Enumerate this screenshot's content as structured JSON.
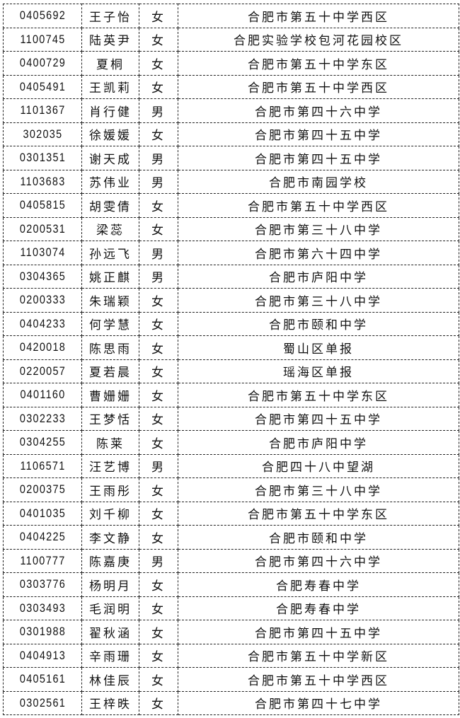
{
  "rows": [
    {
      "id": "0405692",
      "name": "王子怡",
      "gender": "女",
      "school": "合肥市第五十中学西区"
    },
    {
      "id": "1100745",
      "name": "陆英尹",
      "gender": "女",
      "school": "合肥实验学校包河花园校区"
    },
    {
      "id": "0400729",
      "name": "夏桐",
      "gender": "女",
      "school": "合肥市第五十中学东区"
    },
    {
      "id": "0405491",
      "name": "王凯莉",
      "gender": "女",
      "school": "合肥市第五十中学西区"
    },
    {
      "id": "1101367",
      "name": "肖行健",
      "gender": "男",
      "school": "合肥市第四十六中学"
    },
    {
      "id": "302035",
      "name": "徐媛媛",
      "gender": "女",
      "school": "合肥市第四十五中学"
    },
    {
      "id": "0301351",
      "name": "谢天成",
      "gender": "男",
      "school": "合肥市第四十五中学"
    },
    {
      "id": "1103683",
      "name": "苏伟业",
      "gender": "男",
      "school": "合肥市南园学校"
    },
    {
      "id": "0405815",
      "name": "胡雯倩",
      "gender": "女",
      "school": "合肥市第五十中学西区"
    },
    {
      "id": "0200531",
      "name": "梁蕊",
      "gender": "女",
      "school": "合肥市第三十八中学"
    },
    {
      "id": "1103074",
      "name": "孙远飞",
      "gender": "男",
      "school": "合肥市第六十四中学"
    },
    {
      "id": "0304365",
      "name": "姚正麒",
      "gender": "男",
      "school": "合肥市庐阳中学"
    },
    {
      "id": "0200333",
      "name": "朱瑞颖",
      "gender": "女",
      "school": "合肥市第三十八中学"
    },
    {
      "id": "0404233",
      "name": "何学慧",
      "gender": "女",
      "school": "合肥市颐和中学"
    },
    {
      "id": "0420018",
      "name": "陈思雨",
      "gender": "女",
      "school": "蜀山区单报"
    },
    {
      "id": "0220057",
      "name": "夏若晨",
      "gender": "女",
      "school": "瑶海区单报"
    },
    {
      "id": "0401160",
      "name": "曹姗姗",
      "gender": "女",
      "school": "合肥市第五十中学东区"
    },
    {
      "id": "0302233",
      "name": "王梦恬",
      "gender": "女",
      "school": "合肥市第四十五中学"
    },
    {
      "id": "0304255",
      "name": "陈莱",
      "gender": "女",
      "school": "合肥市庐阳中学"
    },
    {
      "id": "1106571",
      "name": "汪艺博",
      "gender": "男",
      "school": "合肥四十八中望湖"
    },
    {
      "id": "0200375",
      "name": "王雨彤",
      "gender": "女",
      "school": "合肥市第三十八中学"
    },
    {
      "id": "0401035",
      "name": "刘千柳",
      "gender": "女",
      "school": "合肥市第五十中学东区"
    },
    {
      "id": "0404225",
      "name": "李文静",
      "gender": "女",
      "school": "合肥市颐和中学"
    },
    {
      "id": "1100777",
      "name": "陈嘉庚",
      "gender": "男",
      "school": "合肥市第四十六中学"
    },
    {
      "id": "0303776",
      "name": "杨明月",
      "gender": "女",
      "school": "合肥寿春中学"
    },
    {
      "id": "0303493",
      "name": "毛润明",
      "gender": "女",
      "school": "合肥寿春中学"
    },
    {
      "id": "0301988",
      "name": "翟秋涵",
      "gender": "女",
      "school": "合肥市第四十五中学"
    },
    {
      "id": "0404913",
      "name": "辛雨珊",
      "gender": "女",
      "school": "合肥市第五十中学新区"
    },
    {
      "id": "0405161",
      "name": "林佳辰",
      "gender": "女",
      "school": "合肥市第五十中学西区"
    },
    {
      "id": "0302561",
      "name": "王梓昳",
      "gender": "女",
      "school": "合肥市第四十七中学"
    }
  ]
}
